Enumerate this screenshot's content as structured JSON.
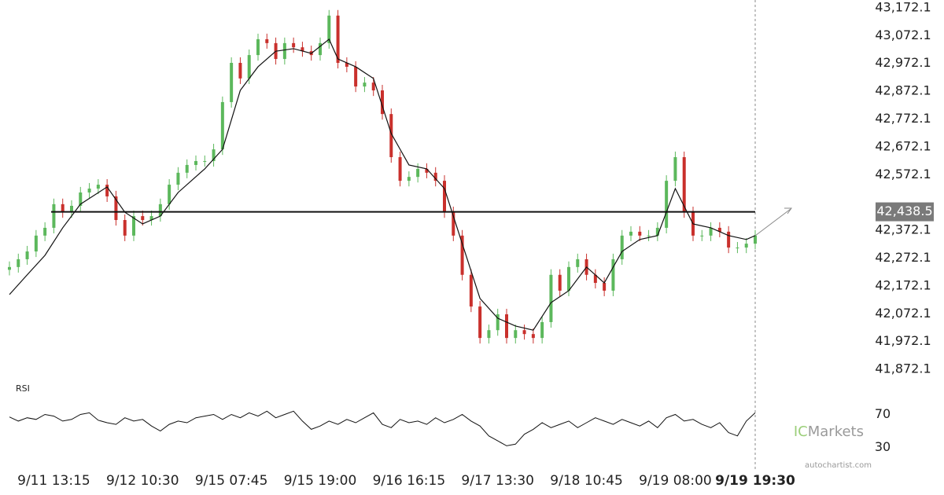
{
  "chart_data": [
    {
      "type": "candlestick",
      "up_color": "#5cb85c",
      "down_color": "#c9302c",
      "x": [
        -5,
        -4,
        -3,
        -2,
        -1,
        0,
        1,
        2,
        3,
        4,
        5,
        6,
        7,
        8,
        9,
        10,
        11,
        12,
        13,
        14,
        15,
        16,
        17,
        18,
        19,
        20,
        21,
        22,
        23,
        24,
        25,
        26,
        27,
        28,
        29,
        30,
        31,
        32,
        33,
        34,
        35,
        36,
        37,
        38,
        39,
        40,
        41,
        42,
        43,
        44,
        45,
        46,
        47,
        48,
        49,
        50,
        51,
        52,
        53,
        54,
        55,
        56,
        57,
        58,
        59,
        60,
        61,
        62,
        63,
        64,
        65,
        66,
        67,
        68,
        69,
        70,
        71,
        72,
        73,
        74,
        75,
        76,
        77,
        78,
        79
      ],
      "open": [
        42230,
        42240,
        42268,
        42296,
        42353,
        42381,
        42466,
        42437,
        42460,
        42508,
        42522,
        42536,
        42494,
        42409,
        42353,
        42423,
        42409,
        42423,
        42466,
        42536,
        42579,
        42607,
        42621,
        42621,
        42663,
        42833,
        42974,
        42918,
        43002,
        43059,
        43045,
        42988,
        43045,
        43030,
        43016,
        43002,
        43045,
        43144,
        42974,
        42960,
        42889,
        42903,
        42875,
        42790,
        42635,
        42550,
        42564,
        42593,
        42579,
        42550,
        42437,
        42353,
        42212,
        42098,
        41985,
        42013,
        42070,
        41985,
        42013,
        41999,
        41985,
        42042,
        42212,
        42155,
        42240,
        42268,
        42212,
        42183,
        42155,
        42268,
        42353,
        42367,
        42353,
        42353,
        42381,
        42550,
        42635,
        42437,
        42353,
        42353,
        42381,
        42367,
        42310,
        42310,
        42324
      ],
      "high": [
        42260,
        42288,
        42316,
        42373,
        42401,
        42486,
        42486,
        42480,
        42528,
        42542,
        42556,
        42556,
        42514,
        42429,
        42443,
        42443,
        42443,
        42486,
        42556,
        42599,
        42627,
        42641,
        42641,
        42683,
        42853,
        42994,
        42994,
        43022,
        43079,
        43079,
        43065,
        43065,
        43065,
        43050,
        43036,
        43065,
        43164,
        43164,
        42994,
        42980,
        42923,
        42923,
        42895,
        42810,
        42655,
        42584,
        42613,
        42613,
        42599,
        42570,
        42457,
        42373,
        42232,
        42118,
        42033,
        42090,
        42090,
        42033,
        42033,
        42019,
        42062,
        42232,
        42232,
        42260,
        42288,
        42288,
        42232,
        42203,
        42288,
        42373,
        42387,
        42387,
        42373,
        42401,
        42570,
        42655,
        42655,
        42457,
        42373,
        42401,
        42401,
        42387,
        42330,
        42344,
        42373
      ],
      "low": [
        42210,
        42220,
        42248,
        42276,
        42333,
        42361,
        42417,
        42417,
        42440,
        42488,
        42502,
        42474,
        42389,
        42333,
        42333,
        42389,
        42389,
        42403,
        42446,
        42516,
        42559,
        42587,
        42601,
        42601,
        42643,
        42813,
        42898,
        42898,
        42982,
        43025,
        42968,
        42968,
        43010,
        42996,
        42982,
        42982,
        43025,
        42954,
        42940,
        42869,
        42869,
        42855,
        42770,
        42615,
        42530,
        42530,
        42544,
        42559,
        42530,
        42417,
        42333,
        42192,
        42078,
        41965,
        41965,
        41993,
        41965,
        41965,
        41979,
        41965,
        41965,
        42022,
        42135,
        42135,
        42220,
        42192,
        42163,
        42135,
        42135,
        42248,
        42333,
        42333,
        42333,
        42333,
        42361,
        42530,
        42417,
        42333,
        42333,
        42333,
        42347,
        42290,
        42290,
        42290,
        42304
      ],
      "close": [
        42240,
        42268,
        42296,
        42353,
        42381,
        42466,
        42437,
        42460,
        42508,
        42522,
        42536,
        42494,
        42409,
        42353,
        42423,
        42409,
        42423,
        42466,
        42536,
        42579,
        42607,
        42621,
        42621,
        42663,
        42833,
        42974,
        42918,
        43002,
        43059,
        43045,
        42988,
        43045,
        43030,
        43016,
        43002,
        43045,
        43144,
        42974,
        42960,
        42889,
        42903,
        42875,
        42790,
        42635,
        42550,
        42564,
        42593,
        42579,
        42550,
        42437,
        42353,
        42212,
        42098,
        41985,
        42013,
        42070,
        41985,
        42013,
        41999,
        41985,
        42042,
        42212,
        42155,
        42240,
        42268,
        42212,
        42183,
        42155,
        42268,
        42353,
        42367,
        42353,
        42353,
        42381,
        42550,
        42635,
        42437,
        42353,
        42353,
        42381,
        42367,
        42310,
        42310,
        42324,
        42353
      ],
      "moving_average": {
        "color": "#111111",
        "x": [
          -5,
          -3,
          -1,
          1,
          3,
          6,
          8,
          10,
          12,
          14,
          17,
          19,
          21,
          23,
          25,
          27,
          29,
          31,
          32,
          34,
          36,
          38,
          40,
          42,
          44,
          46,
          48,
          50,
          52,
          54,
          56,
          58,
          60,
          62,
          64,
          66,
          68,
          70,
          72,
          74,
          76,
          78,
          79
        ],
        "values": [
          42141,
          42212,
          42282,
          42381,
          42466,
          42528,
          42437,
          42395,
          42423,
          42508,
          42593,
          42663,
          42875,
          42960,
          43016,
          43025,
          43008,
          43059,
          42988,
          42960,
          42918,
          42720,
          42607,
          42593,
          42522,
          42324,
          42127,
          42056,
          42028,
          42013,
          42112,
          42155,
          42240,
          42183,
          42296,
          42339,
          42353,
          42522,
          42395,
          42381,
          42353,
          42339,
          42353
        ]
      },
      "level": {
        "value": 42438.5,
        "label": "42,438.5"
      },
      "xlim": [
        -5,
        79
      ],
      "ylim": [
        41830,
        43200
      ],
      "yticks": [
        {
          "value": 43172.1,
          "label": "43,172.1"
        },
        {
          "value": 43072.1,
          "label": "43,072.1"
        },
        {
          "value": 42972.1,
          "label": "42,972.1"
        },
        {
          "value": 42872.1,
          "label": "42,872.1"
        },
        {
          "value": 42772.1,
          "label": "42,772.1"
        },
        {
          "value": 42672.1,
          "label": "42,672.1"
        },
        {
          "value": 42572.1,
          "label": "42,572.1"
        },
        {
          "value": 42372.1,
          "label": "42,372.1"
        },
        {
          "value": 42272.1,
          "label": "42,272.1"
        },
        {
          "value": 42172.1,
          "label": "42,172.1"
        },
        {
          "value": 42072.1,
          "label": "42,072.1"
        },
        {
          "value": 41972.1,
          "label": "41,972.1"
        },
        {
          "value": 41872.1,
          "label": "41,872.1"
        }
      ],
      "xticks": [
        {
          "value": 0,
          "label": "9/11 13:15"
        },
        {
          "value": 10,
          "label": "9/12 10:30"
        },
        {
          "value": 20,
          "label": "9/15 07:45"
        },
        {
          "value": 30,
          "label": "9/15 19:00"
        },
        {
          "value": 40,
          "label": "9/16 16:15"
        },
        {
          "value": 50,
          "label": "9/17 13:30"
        },
        {
          "value": 60,
          "label": "9/18 10:45"
        },
        {
          "value": 70,
          "label": "9/19 08:00"
        },
        {
          "value": 79,
          "label": "9/19 19:30"
        }
      ]
    },
    {
      "type": "line",
      "title": "RSI",
      "color": "#111111",
      "x": [
        -5,
        -4,
        -3,
        -2,
        -1,
        0,
        1,
        2,
        3,
        4,
        5,
        6,
        7,
        8,
        9,
        10,
        11,
        12,
        13,
        14,
        15,
        16,
        17,
        18,
        19,
        20,
        21,
        22,
        23,
        24,
        25,
        26,
        27,
        28,
        29,
        30,
        31,
        32,
        33,
        34,
        35,
        36,
        37,
        38,
        39,
        40,
        41,
        42,
        43,
        44,
        45,
        46,
        47,
        48,
        49,
        50,
        51,
        52,
        53,
        54,
        55,
        56,
        57,
        58,
        59,
        60,
        61,
        62,
        63,
        64,
        65,
        66,
        67,
        68,
        69,
        70,
        71,
        72,
        73,
        74,
        75,
        76,
        77,
        78,
        79
      ],
      "values": [
        67,
        62,
        66,
        64,
        70,
        68,
        62,
        64,
        70,
        72,
        63,
        60,
        58,
        66,
        62,
        64,
        56,
        50,
        58,
        62,
        60,
        66,
        68,
        70,
        64,
        70,
        66,
        72,
        68,
        74,
        66,
        70,
        74,
        62,
        52,
        56,
        62,
        58,
        64,
        60,
        66,
        72,
        58,
        54,
        64,
        60,
        62,
        58,
        66,
        60,
        64,
        70,
        62,
        56,
        44,
        38,
        32,
        34,
        46,
        52,
        60,
        54,
        58,
        62,
        54,
        60,
        66,
        62,
        58,
        64,
        60,
        56,
        62,
        54,
        66,
        70,
        62,
        64,
        58,
        54,
        60,
        48,
        44,
        62,
        72
      ],
      "xlim": [
        -5,
        79
      ],
      "ylim": [
        0,
        100
      ],
      "yticks": [
        70,
        30
      ]
    }
  ],
  "branding": {
    "logo_prefix": "IC",
    "logo": "Markets",
    "watermark": "autochartist.com"
  }
}
